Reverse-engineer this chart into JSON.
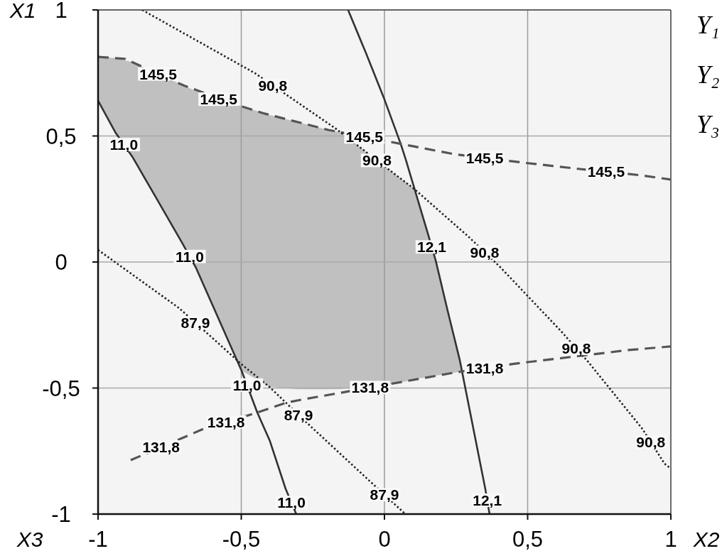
{
  "chart_data": {
    "type": "line",
    "xlabel": "X2",
    "ylabel": "X1",
    "xlim": [
      -1,
      1
    ],
    "ylim": [
      -1,
      1
    ],
    "xticks": [
      -1,
      {
        "value": -0.5,
        "label": "-0,5"
      },
      0,
      {
        "value": 0.5,
        "label": "0,5"
      },
      1
    ],
    "yticks": [
      -1,
      {
        "value": -0.5,
        "label": "-0,5"
      },
      0,
      {
        "value": 0.5,
        "label": "0,5"
      },
      1
    ],
    "grid": true,
    "series": [
      {
        "type": "area",
        "color": "#c0c0c0",
        "x": [
          -1,
          -0.94,
          -0.88,
          -0.705,
          -0.658,
          -0.5,
          -0.402,
          -0.3,
          -0.196,
          -0.154,
          0.045,
          0.104,
          0.151,
          0.179,
          0.2,
          0.263,
          0.27
        ],
        "values": [
          null,
          null,
          null,
          null,
          null,
          null,
          null,
          null,
          null,
          null,
          null,
          null,
          null,
          null,
          null,
          null,
          null
        ],
        "upper": [
          0.814,
          0.809,
          0.793,
          0.702,
          0.678,
          0.618,
          0.584,
          0.554,
          0.524,
          0.515,
          0.341,
          0.29,
          0.115,
          0.006,
          -0.093,
          -0.389,
          -0.43
        ],
        "lower": [
          0.64,
          0.515,
          0.417,
          0.073,
          -0.023,
          -0.43,
          -0.495,
          -0.505,
          -0.505,
          -0.504,
          -0.482,
          -0.465,
          -0.456,
          -0.451,
          -0.447,
          -0.436,
          -0.434
        ]
      },
      {
        "color": "#333333",
        "line_style": "solid",
        "x": [
          -1,
          -0.94,
          -0.88,
          -0.8,
          -0.705,
          -0.658,
          -0.6,
          -0.499,
          -0.444,
          -0.4,
          -0.345,
          -0.308
        ],
        "values": [
          0.64,
          0.515,
          0.417,
          0.26,
          0.073,
          -0.023,
          -0.172,
          -0.431,
          -0.597,
          -0.71,
          -0.9,
          -1
        ]
      },
      {
        "color": "#333333",
        "line_style": "solid",
        "x": [
          -0.127,
          -0.065,
          -0.002,
          0.057,
          0.074,
          0.151,
          0.179,
          0.22,
          0.263,
          0.352,
          0.367
        ],
        "values": [
          1,
          0.83,
          0.651,
          0.468,
          0.408,
          0.115,
          0.006,
          -0.19,
          -0.389,
          -0.899,
          -1
        ]
      },
      {
        "color": "#555555",
        "line_style": "dashed",
        "x": [
          -1,
          -0.906,
          -0.7,
          -0.5,
          -0.419,
          -0.196,
          0.243,
          0.486,
          0.682,
          0.896,
          1
        ],
        "values": [
          0.814,
          0.806,
          0.7,
          0.618,
          0.589,
          0.524,
          0.428,
          0.394,
          0.369,
          0.344,
          0.327
        ]
      },
      {
        "color": "#555555",
        "line_style": "dashed",
        "x": [
          -0.886,
          -0.638,
          -0.444,
          -0.342,
          -0.28,
          -0.179,
          0.243,
          0.457,
          0.605,
          0.854,
          1
        ],
        "values": [
          -0.786,
          -0.665,
          -0.597,
          -0.558,
          -0.544,
          -0.524,
          -0.439,
          -0.403,
          -0.383,
          -0.349,
          -0.335
        ]
      },
      {
        "color": "#222222",
        "line_style": "dotted",
        "x": [
          -0.846,
          -0.452,
          -0.171,
          0.045,
          0.104,
          0.293,
          0.404,
          0.618,
          0.712,
          0.9,
          0.978,
          1
        ],
        "values": [
          1,
          0.749,
          0.53,
          0.341,
          0.29,
          0.101,
          -0.02,
          -0.276,
          -0.397,
          -0.661,
          -0.8,
          -0.82
        ]
      },
      {
        "color": "#222222",
        "line_style": "dotted",
        "x": [
          -1,
          -0.717,
          -0.598,
          -0.499,
          -0.402,
          -0.337,
          -0.251,
          -0.042,
          0.073
        ],
        "values": [
          0.048,
          -0.183,
          -0.304,
          -0.406,
          -0.495,
          -0.566,
          -0.659,
          -0.879,
          -1
        ]
      }
    ],
    "annotations": [
      "X3",
      "Y₁",
      "Y₂",
      "Y₃",
      {
        "text": "145,5",
        "x": -0.79,
        "y": 0.746
      },
      {
        "text": "145,5",
        "x": -0.579,
        "y": 0.646
      },
      {
        "text": "145,5",
        "x": -0.07,
        "y": 0.496
      },
      {
        "text": "145,5",
        "x": 0.35,
        "y": 0.413
      },
      {
        "text": "145,5",
        "x": 0.774,
        "y": 0.358
      },
      {
        "text": "90,8",
        "x": -0.39,
        "y": 0.701
      },
      {
        "text": "90,8",
        "x": -0.026,
        "y": 0.403
      },
      {
        "text": "90,8",
        "x": 0.35,
        "y": 0.039
      },
      {
        "text": "90,8",
        "x": 0.67,
        "y": -0.343
      },
      {
        "text": "90,8",
        "x": 0.93,
        "y": -0.714
      },
      {
        "text": "11,0",
        "x": -0.91,
        "y": 0.466
      },
      {
        "text": "11,0",
        "x": -0.68,
        "y": 0.022
      },
      {
        "text": "11,0",
        "x": -0.48,
        "y": -0.488
      },
      {
        "text": "11,0",
        "x": -0.325,
        "y": -0.954
      },
      {
        "text": "12,1",
        "x": 0.165,
        "y": 0.06
      },
      {
        "text": "12,1",
        "x": 0.359,
        "y": -0.945
      },
      {
        "text": "87,9",
        "x": -0.66,
        "y": -0.241
      },
      {
        "text": "87,9",
        "x": -0.3,
        "y": -0.606
      },
      {
        "text": "87,9",
        "x": 0,
        "y": -0.923
      },
      {
        "text": "131,8",
        "x": -0.78,
        "y": -0.734
      },
      {
        "text": "131,8",
        "x": -0.553,
        "y": -0.635
      },
      {
        "text": "131,8",
        "x": -0.05,
        "y": -0.498
      },
      {
        "text": "131,8",
        "x": 0.35,
        "y": -0.421
      }
    ]
  }
}
